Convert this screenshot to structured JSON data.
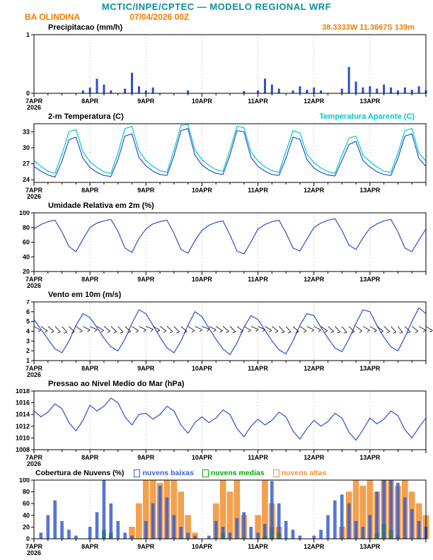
{
  "header": {
    "title": "MCTIC/INPE/CPTEC — MODELO REGIONAL WRF",
    "station": "BA OLINDINA",
    "run": "07/04/2026 00Z",
    "location": "38.3333W 11.3667S 139m"
  },
  "colors": {
    "teal": "#0b8f9b",
    "orange": "#f07d00",
    "blue": "#2a4fd0",
    "cyan": "#00c8c8",
    "green": "#00aa00",
    "bar_blue": "#2a4fd0",
    "cloud_low": "#3a5fd0",
    "cloud_mid": "#00aa00",
    "cloud_high": "#f09030",
    "grid": "#999999",
    "axis": "#000000"
  },
  "x_axis": {
    "step_hours": 3,
    "minor_step_hours": 6,
    "range_hours": [
      0,
      168
    ],
    "major_ticks": [
      {
        "hour": 0,
        "label": "7APR",
        "sub": "2026"
      },
      {
        "hour": 24,
        "label": "8APR"
      },
      {
        "hour": 48,
        "label": "9APR"
      },
      {
        "hour": 72,
        "label": "10APR"
      },
      {
        "hour": 96,
        "label": "11APR"
      },
      {
        "hour": 120,
        "label": "12APR"
      },
      {
        "hour": 144,
        "label": "13APR"
      }
    ]
  },
  "chart_data": [
    {
      "name": "precipitacao",
      "title": "Precipitacao (mm/h)",
      "type": "bar",
      "ylim": [
        0,
        1
      ],
      "yticks": [
        0,
        1
      ],
      "bar_color": "bar_blue",
      "values": [
        0,
        0,
        0,
        0,
        0,
        0,
        0,
        0.05,
        0.1,
        0.25,
        0.15,
        0.05,
        0,
        0.08,
        0.35,
        0.12,
        0.05,
        0.1,
        0,
        0,
        0,
        0,
        0.05,
        0,
        0,
        0,
        0,
        0,
        0,
        0,
        0.04,
        0,
        0.05,
        0.25,
        0.15,
        0.08,
        0,
        0.05,
        0.12,
        0.06,
        0.1,
        0.05,
        0,
        0,
        0.08,
        0.45,
        0.2,
        0.1,
        0.12,
        0.08,
        0.15,
        0.1,
        0.05,
        0.1,
        0.06,
        0.12,
        0.05
      ]
    },
    {
      "name": "temperatura",
      "title": "2-m Temperatura (C)",
      "title2": "Temperatura Aparente (C)",
      "type": "line",
      "ylim": [
        23.5,
        34.5
      ],
      "yticks": [
        24,
        27,
        30,
        33
      ],
      "series": [
        {
          "name": "2-m temperatura",
          "color": "blue",
          "values": [
            26.5,
            25.6,
            24.9,
            24.5,
            27.5,
            31.5,
            32.0,
            28.0,
            26.3,
            25.4,
            24.8,
            24.6,
            27.8,
            32.2,
            32.6,
            28.2,
            26.6,
            25.6,
            25.0,
            24.8,
            28.5,
            33.2,
            33.6,
            28.6,
            26.8,
            25.8,
            25.2,
            25.0,
            28.6,
            33.2,
            33.0,
            28.2,
            26.5,
            25.6,
            25.0,
            24.8,
            28.0,
            32.0,
            31.6,
            27.8,
            26.2,
            25.4,
            24.9,
            24.7,
            27.6,
            30.6,
            31.2,
            27.6,
            26.4,
            25.5,
            25.0,
            24.8,
            28.0,
            32.2,
            32.6,
            28.0,
            26.5
          ]
        },
        {
          "name": "temperatura aparente",
          "color": "cyan",
          "values": [
            27.6,
            26.5,
            25.6,
            25.2,
            28.8,
            33.0,
            33.4,
            29.2,
            27.4,
            26.3,
            25.5,
            25.2,
            29.0,
            33.6,
            34.0,
            29.4,
            27.6,
            26.5,
            25.7,
            25.4,
            29.6,
            34.2,
            34.4,
            29.6,
            27.8,
            26.7,
            25.9,
            25.6,
            29.6,
            34.0,
            33.8,
            29.2,
            27.5,
            26.4,
            25.7,
            25.4,
            29.2,
            33.2,
            32.8,
            28.8,
            27.2,
            26.2,
            25.5,
            25.2,
            28.6,
            31.8,
            32.2,
            28.6,
            27.4,
            26.4,
            25.6,
            25.4,
            29.0,
            33.2,
            33.6,
            29.0,
            27.5
          ]
        }
      ]
    },
    {
      "name": "umidade",
      "title": "Umidade Relativa em 2m (%)",
      "type": "line",
      "ylim": [
        20,
        100
      ],
      "yticks": [
        20,
        40,
        60,
        80,
        100
      ],
      "series": [
        {
          "name": "umidade relativa",
          "color": "blue",
          "values": [
            78,
            84,
            88,
            90,
            74,
            54,
            47,
            64,
            80,
            86,
            89,
            91,
            75,
            52,
            46,
            65,
            78,
            85,
            88,
            90,
            72,
            50,
            45,
            62,
            76,
            83,
            87,
            89,
            70,
            48,
            44,
            60,
            78,
            84,
            88,
            90,
            73,
            52,
            48,
            64,
            80,
            86,
            90,
            92,
            76,
            56,
            50,
            66,
            79,
            85,
            89,
            91,
            74,
            52,
            47,
            63,
            78
          ]
        }
      ]
    },
    {
      "name": "vento",
      "title": "Vento em 10m (m/s)",
      "type": "line",
      "ylim": [
        1,
        7
      ],
      "yticks": [
        1,
        2,
        3,
        4,
        5,
        6,
        7
      ],
      "series": [
        {
          "name": "velocidade do vento",
          "color": "blue",
          "values": [
            5.2,
            4.2,
            3.2,
            2.2,
            1.8,
            3.0,
            4.6,
            5.8,
            5.4,
            4.4,
            3.3,
            2.4,
            2.0,
            3.2,
            4.8,
            6.2,
            5.8,
            4.6,
            3.4,
            2.3,
            1.8,
            3.0,
            4.6,
            6.0,
            5.5,
            4.3,
            3.2,
            2.2,
            1.6,
            2.8,
            4.4,
            5.6,
            5.2,
            4.1,
            3.0,
            2.1,
            1.7,
            3.0,
            4.6,
            5.8,
            5.6,
            4.4,
            3.3,
            2.3,
            1.9,
            3.2,
            4.8,
            6.2,
            6.0,
            4.6,
            3.4,
            2.4,
            2.0,
            3.4,
            5.0,
            6.4,
            5.8
          ]
        }
      ],
      "barbs": {
        "y_value": 4.5,
        "directions": [
          120,
          125,
          130,
          135,
          140,
          135,
          125,
          118,
          115,
          120,
          128,
          134,
          138,
          132,
          124,
          116,
          112,
          118,
          126,
          132,
          136,
          130,
          122,
          114,
          110,
          116,
          124,
          130,
          134,
          128,
          120,
          112,
          115,
          121,
          128,
          135,
          139,
          133,
          125,
          117,
          118,
          124,
          131,
          137,
          141,
          135,
          127,
          119,
          121,
          126,
          132,
          138,
          142,
          136,
          128,
          120,
          122
        ]
      }
    },
    {
      "name": "pressao",
      "title": "Pressao ao Nivel Medio do Mar (hPa)",
      "type": "line",
      "ylim": [
        1008,
        1018
      ],
      "yticks": [
        1008,
        1010,
        1012,
        1014,
        1016,
        1018
      ],
      "series": [
        {
          "name": "pressao ao nivel do mar",
          "color": "blue",
          "values": [
            1014.6,
            1013.6,
            1014.4,
            1015.8,
            1015.0,
            1012.6,
            1011.2,
            1013.0,
            1015.6,
            1014.6,
            1015.4,
            1016.8,
            1016.0,
            1013.6,
            1012.2,
            1014.0,
            1014.2,
            1013.2,
            1014.0,
            1015.4,
            1014.6,
            1012.2,
            1010.8,
            1012.6,
            1013.6,
            1012.6,
            1013.4,
            1014.8,
            1014.0,
            1011.6,
            1010.2,
            1012.0,
            1013.2,
            1012.2,
            1013.0,
            1014.4,
            1013.6,
            1011.2,
            1009.8,
            1011.6,
            1013.0,
            1012.0,
            1012.8,
            1014.2,
            1013.4,
            1011.0,
            1009.6,
            1011.4,
            1013.4,
            1012.4,
            1013.2,
            1014.6,
            1013.8,
            1011.4,
            1010.0,
            1011.8,
            1013.4
          ]
        }
      ]
    },
    {
      "name": "nuvens",
      "title": "Cobertura de Nuvens (%)",
      "type": "bar-multi",
      "ylim": [
        0,
        100
      ],
      "yticks": [
        0,
        20,
        40,
        60,
        80,
        100
      ],
      "legend": [
        {
          "label": "nuvens baixas",
          "color": "cloud_low"
        },
        {
          "label": "nuvens medias",
          "color": "cloud_mid"
        },
        {
          "label": "nuvens altas",
          "color": "cloud_high"
        }
      ],
      "series": [
        {
          "name": "nuvens baixas",
          "color": "cloud_low",
          "width": 4,
          "values": [
            0,
            10,
            40,
            65,
            30,
            15,
            5,
            0,
            20,
            45,
            100,
            60,
            30,
            10,
            5,
            0,
            30,
            60,
            90,
            70,
            40,
            20,
            10,
            5,
            0,
            5,
            30,
            20,
            10,
            35,
            45,
            20,
            10,
            25,
            98,
            60,
            30,
            15,
            5,
            0,
            5,
            15,
            40,
            65,
            75,
            60,
            30,
            20,
            40,
            80,
            100,
            100,
            95,
            70,
            50,
            30,
            20
          ]
        },
        {
          "name": "nuvens medias",
          "color": "cloud_mid",
          "width": 5,
          "values": [
            0,
            0,
            0,
            0,
            0,
            0,
            0,
            0,
            0,
            0,
            15,
            10,
            0,
            0,
            0,
            0,
            0,
            0,
            0,
            0,
            0,
            0,
            0,
            0,
            0,
            0,
            0,
            10,
            0,
            0,
            0,
            0,
            0,
            5,
            20,
            10,
            0,
            0,
            0,
            0,
            0,
            0,
            0,
            0,
            0,
            0,
            0,
            0,
            0,
            10,
            25,
            15,
            5,
            0,
            0,
            0,
            0
          ]
        },
        {
          "name": "nuvens altas",
          "color": "cloud_high",
          "width": 8,
          "values": [
            0,
            0,
            0,
            0,
            0,
            0,
            0,
            0,
            0,
            0,
            0,
            0,
            0,
            0,
            20,
            60,
            100,
            100,
            95,
            100,
            100,
            80,
            40,
            10,
            0,
            0,
            60,
            100,
            80,
            100,
            40,
            0,
            40,
            100,
            60,
            20,
            0,
            0,
            0,
            0,
            0,
            0,
            0,
            0,
            20,
            80,
            100,
            90,
            100,
            80,
            100,
            100,
            90,
            100,
            80,
            60,
            40
          ]
        }
      ]
    }
  ]
}
